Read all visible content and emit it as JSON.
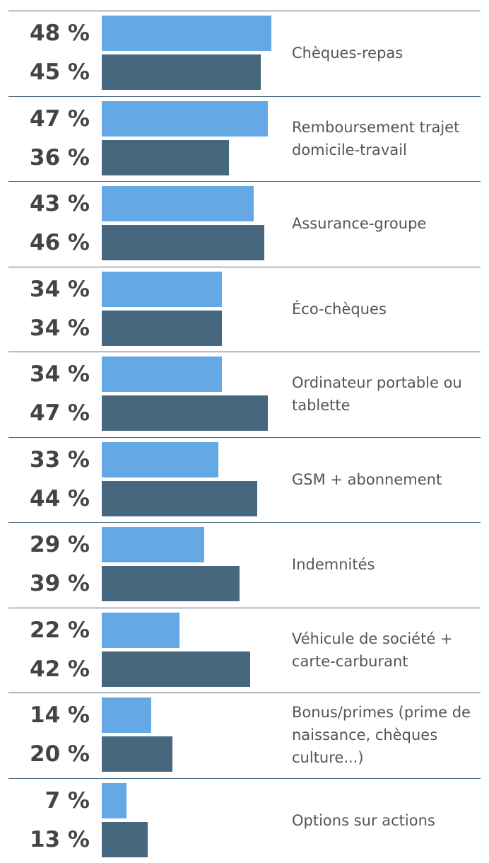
{
  "chart_data": {
    "type": "bar",
    "orientation": "horizontal",
    "categories": [
      "Chèques-repas",
      "Remboursement trajet domicile-travail",
      "Assurance-groupe",
      "Éco-chèques",
      "Ordinateur portable ou tablette",
      "GSM + abonnement",
      "Indemnités",
      "Véhicule de société + carte-carburant",
      "Bonus/primes (prime de naissance, chèques culture...)",
      "Options sur actions"
    ],
    "series": [
      {
        "color": "#64a9e4",
        "values": [
          48,
          47,
          43,
          34,
          34,
          33,
          29,
          22,
          14,
          7
        ],
        "value_labels": [
          "48 %",
          "47 %",
          "43 %",
          "34 %",
          "34 %",
          "33 %",
          "29 %",
          "22 %",
          "14 %",
          "7 %"
        ]
      },
      {
        "color": "#46677e",
        "values": [
          45,
          36,
          46,
          34,
          47,
          44,
          39,
          42,
          20,
          13
        ],
        "value_labels": [
          "45 %",
          "36 %",
          "46 %",
          "34 %",
          "47 %",
          "44 %",
          "39 %",
          "42 %",
          "20 %",
          "13 %"
        ]
      }
    ]
  }
}
